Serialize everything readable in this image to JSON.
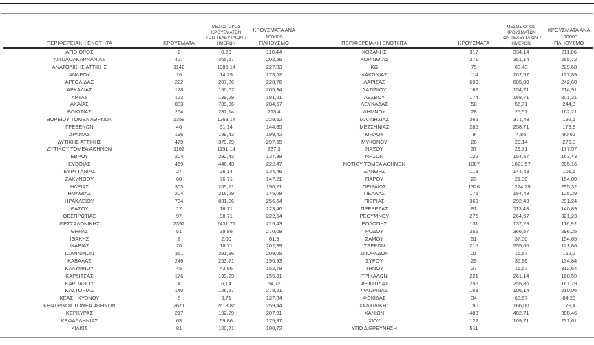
{
  "table": {
    "columns": [
      "ΠΕΡΙΦΕΡΕΙΑΚΗ ΕΝΟΤΗΤΑ",
      "ΚΡΟΥΣΜΑΤΑ",
      "ΜΕΣΟΣ ΟΡΟΣ ΚΡΟΥΣΜΑΤΩΝ\nΤΩΝ ΤΕΛΕΥΤΑΙΩΝ 7 ΗΜΕΡΩΝ",
      "ΚΡΟΥΣΜΑΤΑ ΑΝΑ 100000\nΠΛΗΘΥΣΜΟ"
    ],
    "left_rows": [
      [
        "ΑΓΙΟ ΟΡΟΣ",
        "2",
        "0,29",
        "110,44"
      ],
      [
        "ΑΙΤΩΛΟΑΚΑΡΝΑΝΙΑΣ",
        "427",
        "365,57",
        "202,56"
      ],
      [
        "ΑΝΑΤΟΛΙΚΗΣ ΑΤΤΙΚΗΣ",
        "1142",
        "1085,14",
        "227,33"
      ],
      [
        "ΑΝΔΡΟΥ",
        "16",
        "14,29",
        "173,52"
      ],
      [
        "ΑΡΓΟΛΙΔΑΣ",
        "222",
        "207,86",
        "228,76"
      ],
      [
        "ΑΡΚΑΔΙΑΣ",
        "178",
        "150,57",
        "205,34"
      ],
      [
        "ΑΡΤΑΣ",
        "123",
        "139,29",
        "181,21"
      ],
      [
        "ΑΧΑΪΑΣ",
        "883",
        "789,86",
        "284,57"
      ],
      [
        "ΒΟΙΩΤΙΑΣ",
        "254",
        "237,14",
        "215,4"
      ],
      [
        "ΒΟΡΕΙΟΥ ΤΟΜΕΑ ΑΘΗΝΩΝ",
        "1358",
        "1263,14",
        "229,52"
      ],
      [
        "ΓΡΕΒΕΝΩΝ",
        "46",
        "51,14",
        "144,85"
      ],
      [
        "ΔΡΑΜΑΣ",
        "196",
        "189,43",
        "199,42"
      ],
      [
        "ΔΥΤΙΚΗΣ ΑΤΤΙΚΗΣ",
        "479",
        "379,29",
        "297,65"
      ],
      [
        "ΔΥΤΙΚΟΥ ΤΟΜΕΑ ΑΘΗΝΩΝ",
        "1162",
        "1151,14",
        "237,3"
      ],
      [
        "ΕΒΡΟΥ",
        "204",
        "292,43",
        "137,89"
      ],
      [
        "ΕΥΒΟΙΑΣ",
        "469",
        "446,43",
        "222,47"
      ],
      [
        "ΕΥΡΥΤΑΝΙΑΣ",
        "27",
        "26,14",
        "134,46"
      ],
      [
        "ΖΑΚΥΝΘΟΥ",
        "60",
        "76,71",
        "147,21"
      ],
      [
        "ΗΛΕΙΑΣ",
        "303",
        "265,71",
        "190,21"
      ],
      [
        "ΗΜΑΘΙΑΣ",
        "204",
        "216,29",
        "145,08"
      ],
      [
        "ΗΡΑΚΛΕΙΟΥ",
        "784",
        "831,86",
        "256,64"
      ],
      [
        "ΘΑΣΟΥ",
        "17",
        "16,71",
        "123,46"
      ],
      [
        "ΘΕΣΠΡΩΤΙΑΣ",
        "97",
        "98,71",
        "222,54"
      ],
      [
        "ΘΕΣΣΑΛΟΝΙΚΗΣ",
        "2392",
        "2431,71",
        "215,43"
      ],
      [
        "ΘΗΡΑΣ",
        "51",
        "39,86",
        "270,08"
      ],
      [
        "ΙΘΑΚΗΣ",
        "2",
        "2,00",
        "61,9"
      ],
      [
        "ΙΚΑΡΙΑΣ",
        "20",
        "18,71",
        "202,39"
      ],
      [
        "ΙΩΑΝΝΙΝΩΝ",
        "351",
        "391,86",
        "209,05"
      ],
      [
        "ΚΑΒΑΛΑΣ",
        "246",
        "253,71",
        "196,93"
      ],
      [
        "ΚΑΛΥΜΝΟΥ",
        "45",
        "43,86",
        "152,79"
      ],
      [
        "ΚΑΡΔΙΤΣΑΣ",
        "176",
        "199,29",
        "155,01"
      ],
      [
        "ΚΑΡΠΑΘΟΥ",
        "4",
        "6,14",
        "54,72"
      ],
      [
        "ΚΑΣΤΟΡΙΑΣ",
        "140",
        "126,57",
        "278,21"
      ],
      [
        "ΚΕΑΣ - ΚΥΘΝΟΥ",
        "5",
        "3,71",
        "127,84"
      ],
      [
        "ΚΕΝΤΡΙΚΟΥ ΤΟΜΕΑ ΑΘΗΝΩΝ",
        "2671",
        "2613,86",
        "259,44"
      ],
      [
        "ΚΕΡΚΥΡΑΣ",
        "217",
        "192,29",
        "207,91"
      ],
      [
        "ΚΕΦΑΛΛΗΝΙΑΣ",
        "63",
        "59,86",
        "175,97"
      ],
      [
        "ΚΙΛΚΙΣ",
        "81",
        "100,71",
        "100,72"
      ]
    ],
    "right_rows": [
      [
        "ΚΟΖΑΝΗΣ",
        "317",
        "334,14",
        "211,06"
      ],
      [
        "ΚΟΡΙΝΘΙΑΣ",
        "371",
        "351,14",
        "255,72"
      ],
      [
        "ΚΩ",
        "79",
        "63,43",
        "229,68"
      ],
      [
        "ΛΑΚΩΝΙΑΣ",
        "114",
        "102,57",
        "127,89"
      ],
      [
        "ΛΑΡΙΣΑΣ",
        "690",
        "685,00",
        "242,68"
      ],
      [
        "ΛΑΣΙΘΙΟΥ",
        "162",
        "154,71",
        "214,91"
      ],
      [
        "ΛΕΣΒΟΥ",
        "174",
        "168,71",
        "201,31"
      ],
      [
        "ΛΕΥΚΑΔΑΣ",
        "58",
        "56,71",
        "244,8"
      ],
      [
        "ΛΗΜΝΟΥ",
        "28",
        "25,57",
        "162,21"
      ],
      [
        "ΜΑΓΝΗΣΙΑΣ",
        "365",
        "371,43",
        "192,1"
      ],
      [
        "ΜΕΣΣΗΝΙΑΣ",
        "286",
        "258,71",
        "178,8"
      ],
      [
        "ΜΗΛΟΥ",
        "9",
        "4,86",
        "90,62"
      ],
      [
        "ΜΥΚΟΝΟΥ",
        "28",
        "29,14",
        "276,3"
      ],
      [
        "ΝΑΞΟΥ",
        "37",
        "29,71",
        "177,57"
      ],
      [
        "ΝΗΣΩΝ",
        "122",
        "154,57",
        "163,43"
      ],
      [
        "ΝΟΤΙΟΥ ΤΟΜΕΑ ΑΘΗΝΩΝ",
        "1087",
        "1021,57",
        "205,16"
      ],
      [
        "ΞΑΝΘΗΣ",
        "113",
        "144,43",
        "101,6"
      ],
      [
        "ΠΑΡΟΥ",
        "23",
        "21,00",
        "154,09"
      ],
      [
        "ΠΕΙΡΑΙΩΣ",
        "1326",
        "1224,29",
        "295,32"
      ],
      [
        "ΠΕΛΛΑΣ",
        "175",
        "184,43",
        "125,29"
      ],
      [
        "ΠΙΕΡΙΑΣ",
        "369",
        "292,43",
        "291,24"
      ],
      [
        "ΠΡΕΒΕΖΑΣ",
        "81",
        "113,43",
        "140,89"
      ],
      [
        "ΡΕΘΥΜΝΟΥ",
        "275",
        "264,57",
        "321,23"
      ],
      [
        "ΡΟΔΟΠΗΣ",
        "131",
        "137,29",
        "116,92"
      ],
      [
        "ΡΟΔΟΥ",
        "355",
        "366,57",
        "296,25"
      ],
      [
        "ΣΑΜΟΥ",
        "51",
        "37,00",
        "154,65"
      ],
      [
        "ΣΕΡΡΩΝ",
        "215",
        "255,00",
        "121,86"
      ],
      [
        "ΣΠΟΡΑΔΩΝ",
        "21",
        "16,57",
        "152,2"
      ],
      [
        "ΣΥΡΟΥ",
        "29",
        "35,86",
        "134,84"
      ],
      [
        "ΤΗΝΟΥ",
        "27",
        "16,57",
        "312,64"
      ],
      [
        "ΤΡΙΚΑΛΩΝ",
        "221",
        "261,14",
        "168,59"
      ],
      [
        "ΦΘΙΩΤΙΔΑΣ",
        "256",
        "255,86",
        "161,79"
      ],
      [
        "ΦΛΩΡΙΝΑΣ",
        "108",
        "106,14",
        "210,06"
      ],
      [
        "ΦΩΚΙΔΑΣ",
        "34",
        "63,57",
        "84,28"
      ],
      [
        "ΧΑΛΚΙΔΙΚΗΣ",
        "190",
        "166,00",
        "179,4"
      ],
      [
        "ΧΑΝΙΩΝ",
        "483",
        "482,71",
        "308,46"
      ],
      [
        "ΧΙΟΥ",
        "122",
        "109,71",
        "231,61"
      ],
      [
        "ΥΠΟ ΔΙΕΡΕΥΝΗΣΗ",
        "511",
        "",
        ""
      ]
    ]
  }
}
